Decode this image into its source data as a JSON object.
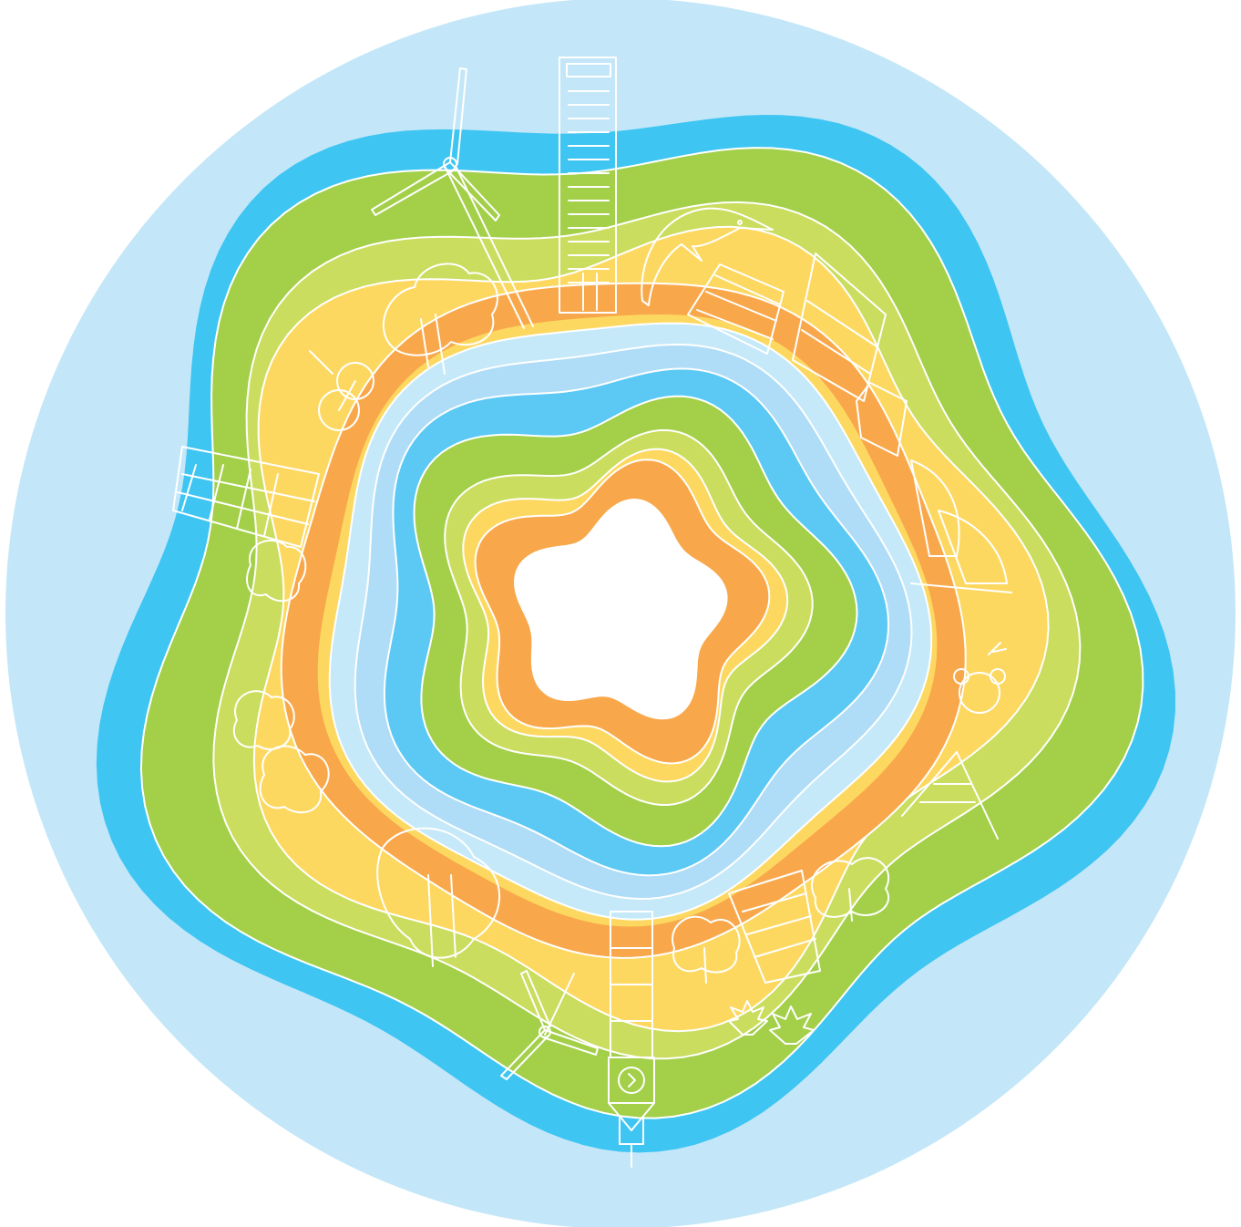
{
  "illustration": {
    "subject": "concentric-wavy-rings-with-city-and-nature-line-drawings",
    "colors": {
      "background": "#ffffff",
      "outer_circle": "#c3e7f8",
      "deep_blue": "#3fc5f2",
      "green": "#a3cf49",
      "light_green": "#cadd5e",
      "yellow": "#fdd861",
      "orange": "#f8a84b",
      "light_blue": "#afdcf6",
      "inner_light_blue": "#c5e9f9",
      "inner_blue": "#5bc9f4",
      "center": "#ffffff",
      "line_art": "#ffffff"
    },
    "icons": [
      "wind-turbine-icon",
      "skyscraper-icon",
      "dolphin-icon",
      "tree-icon",
      "building-icon",
      "clock-tower-icon",
      "maple-leaf-icon",
      "eiffel-tower-icon",
      "opera-house-icon",
      "koala-icon",
      "bicycle-icon"
    ]
  }
}
